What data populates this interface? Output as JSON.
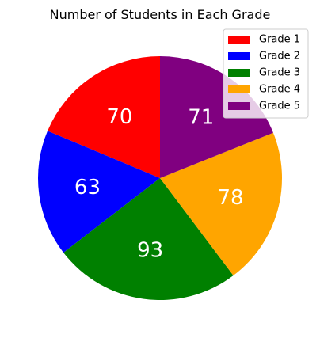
{
  "chart_data": {
    "type": "pie",
    "title": "Number of Students in Each Grade",
    "categories": [
      "Grade 1",
      "Grade 2",
      "Grade 3",
      "Grade 4",
      "Grade 5"
    ],
    "values": [
      70,
      63,
      93,
      78,
      71
    ],
    "colors": [
      "#ff0000",
      "#0000ff",
      "#008000",
      "#ffa500",
      "#800080"
    ],
    "start_angle_deg": 90,
    "direction": "counterclockwise",
    "legend_position": "top-right",
    "labels_show": "values"
  }
}
